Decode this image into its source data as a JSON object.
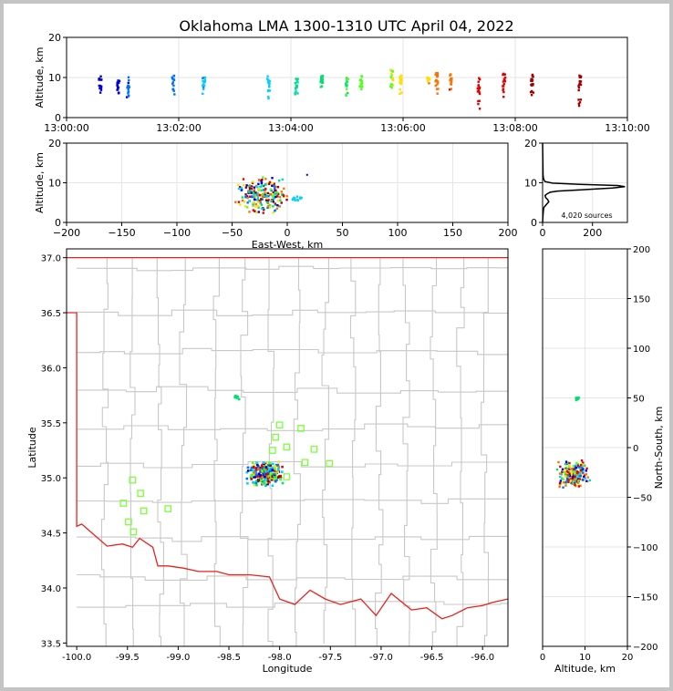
{
  "title": "Oklahoma LMA 1300-1310 UTC April 04, 2022",
  "source_count_label": "4,020 sources",
  "colors": {
    "county_lines": "#c8c8c8",
    "state_border": "#e8231e",
    "stations": "#7dff3c",
    "grid": "#e6e6e6",
    "histogram_line": "#000000",
    "colormap": [
      "#0000dd",
      "#0070ff",
      "#00d0ff",
      "#00e070",
      "#50ff20",
      "#ffe000",
      "#ff7000",
      "#e00000",
      "#a00000"
    ]
  },
  "chart_data": [
    {
      "id": "time_altitude",
      "type": "scatter",
      "xlabel": "",
      "ylabel": "Altitude, km",
      "xlim": [
        0,
        10
      ],
      "ylim": [
        0,
        20
      ],
      "xticks": [
        0,
        2,
        4,
        6,
        8,
        10
      ],
      "xtick_labels": [
        "13:00:00",
        "13:02:00",
        "13:04:00",
        "13:06:00",
        "13:08:00",
        "13:10:00"
      ],
      "yticks": [
        0,
        10,
        20
      ],
      "grid": true,
      "flashes": [
        {
          "t": 0.6,
          "z": [
            4.5,
            10.5
          ]
        },
        {
          "t": 0.92,
          "z": [
            5.5,
            10.0
          ]
        },
        {
          "t": 1.1,
          "z": [
            3.8,
            10.2
          ]
        },
        {
          "t": 1.9,
          "z": [
            5.5,
            10.5
          ]
        },
        {
          "t": 2.45,
          "z": [
            5.5,
            10.0
          ]
        },
        {
          "t": 3.6,
          "z": [
            3.5,
            10.5
          ]
        },
        {
          "t": 4.1,
          "z": [
            4.5,
            10.0
          ]
        },
        {
          "t": 4.55,
          "z": [
            7.5,
            10.5
          ]
        },
        {
          "t": 5.0,
          "z": [
            5.5,
            10.0
          ]
        },
        {
          "t": 5.25,
          "z": [
            5.0,
            10.5
          ]
        },
        {
          "t": 5.8,
          "z": [
            7.0,
            12.0
          ]
        },
        {
          "t": 5.95,
          "z": [
            5.0,
            10.5
          ]
        },
        {
          "t": 6.45,
          "z": [
            8.0,
            10.0
          ]
        },
        {
          "t": 6.6,
          "z": [
            4.5,
            11.5
          ]
        },
        {
          "t": 6.85,
          "z": [
            6.5,
            11.0
          ]
        },
        {
          "t": 7.35,
          "z": [
            0.8,
            10.5
          ]
        },
        {
          "t": 7.8,
          "z": [
            4.0,
            11.0
          ]
        },
        {
          "t": 8.3,
          "z": [
            5.5,
            11.0
          ]
        },
        {
          "t": 9.15,
          "z": [
            1.5,
            10.5
          ]
        }
      ]
    },
    {
      "id": "east_west_altitude",
      "type": "scatter",
      "xlabel": "East-West, km",
      "ylabel": "Altitude, km",
      "xlim": [
        -200,
        200
      ],
      "ylim": [
        0,
        20
      ],
      "xticks": [
        -200,
        -150,
        -100,
        -50,
        0,
        50,
        100,
        150,
        200
      ],
      "yticks": [
        0,
        10,
        20
      ],
      "grid": true,
      "clusters": [
        {
          "x_range": [
            -48,
            2
          ],
          "z_range": [
            2,
            12
          ],
          "count": 220
        },
        {
          "x_range": [
            2,
            15
          ],
          "z_range": [
            5,
            7
          ],
          "count": 12
        }
      ],
      "isolated_points": [
        {
          "x": 18,
          "z": 12
        }
      ]
    },
    {
      "id": "altitude_histogram",
      "type": "line",
      "xlabel": "",
      "ylabel": "",
      "xlim": [
        0,
        340
      ],
      "ylim": [
        0,
        20
      ],
      "xticks": [
        0,
        200
      ],
      "yticks": [
        0,
        10,
        20
      ],
      "grid": true,
      "annotation": "4,020 sources",
      "x": [
        0,
        2,
        4,
        6,
        8,
        15,
        25,
        20,
        12,
        10,
        18,
        30,
        60,
        120,
        200,
        280,
        330,
        300,
        150,
        40,
        10,
        5,
        3,
        2,
        0
      ],
      "y": [
        0,
        2,
        3.5,
        3.8,
        4,
        4.5,
        5.2,
        5.8,
        6.3,
        6.8,
        7.2,
        7.6,
        7.9,
        8.1,
        8.4,
        8.7,
        9.0,
        9.3,
        9.6,
        9.9,
        10.3,
        10.8,
        11.3,
        12.0,
        20
      ]
    },
    {
      "id": "plan_view_map",
      "type": "scatter",
      "xlabel": "Longitude",
      "ylabel": "Latitude",
      "xlim": [
        -100.1,
        -95.75
      ],
      "ylim": [
        33.47,
        37.08
      ],
      "xticks": [
        -100.0,
        -99.5,
        -99.0,
        -98.5,
        -98.0,
        -97.5,
        -97.0,
        -96.5,
        -96.0
      ],
      "xtick_labels": [
        "-100.0",
        "-99.5",
        "-99.0",
        "-98.5",
        "-98.0",
        "-97.5",
        "-97.0",
        "-96.5",
        "-96.0"
      ],
      "yticks": [
        33.5,
        34.0,
        34.5,
        35.0,
        35.5,
        36.0,
        36.5,
        37.0
      ],
      "ytick_labels": [
        "33.5",
        "34.0",
        "34.5",
        "35.0",
        "35.5",
        "36.0",
        "36.5",
        "37.0"
      ],
      "grid": false,
      "clusters": [
        {
          "lon_range": [
            -98.35,
            -97.95
          ],
          "lat_range": [
            34.92,
            35.16
          ],
          "count": 260
        },
        {
          "lon_range": [
            -98.46,
            -98.38
          ],
          "lat_range": [
            35.71,
            35.75
          ],
          "count": 12
        }
      ],
      "stations": [
        {
          "lon": -98.0,
          "lat": 35.48
        },
        {
          "lon": -97.79,
          "lat": 35.45
        },
        {
          "lon": -98.04,
          "lat": 35.37
        },
        {
          "lon": -97.93,
          "lat": 35.28
        },
        {
          "lon": -98.07,
          "lat": 35.25
        },
        {
          "lon": -97.66,
          "lat": 35.26
        },
        {
          "lon": -97.75,
          "lat": 35.14
        },
        {
          "lon": -97.51,
          "lat": 35.13
        },
        {
          "lon": -98.06,
          "lat": 35.02
        },
        {
          "lon": -97.93,
          "lat": 35.01
        },
        {
          "lon": -99.45,
          "lat": 34.98
        },
        {
          "lon": -99.37,
          "lat": 34.86
        },
        {
          "lon": -99.54,
          "lat": 34.77
        },
        {
          "lon": -99.34,
          "lat": 34.7
        },
        {
          "lon": -99.1,
          "lat": 34.72
        },
        {
          "lon": -99.49,
          "lat": 34.6
        },
        {
          "lon": -99.44,
          "lat": 34.51
        }
      ],
      "state_border": [
        [
          -100.1,
          37.0
        ],
        [
          -95.75,
          37.0
        ],
        [
          -100.1,
          36.5
        ],
        [
          -100.0,
          36.5
        ],
        [
          -100.0,
          34.56
        ],
        [
          -99.95,
          34.58
        ],
        [
          -99.85,
          34.5
        ],
        [
          -99.7,
          34.38
        ],
        [
          -99.55,
          34.4
        ],
        [
          -99.45,
          34.37
        ],
        [
          -99.38,
          34.45
        ],
        [
          -99.25,
          34.37
        ],
        [
          -99.2,
          34.2
        ],
        [
          -99.1,
          34.2
        ],
        [
          -98.95,
          34.18
        ],
        [
          -98.8,
          34.15
        ],
        [
          -98.62,
          34.15
        ],
        [
          -98.5,
          34.12
        ],
        [
          -98.3,
          34.12
        ],
        [
          -98.1,
          34.1
        ],
        [
          -98.0,
          33.9
        ],
        [
          -97.85,
          33.85
        ],
        [
          -97.7,
          33.98
        ],
        [
          -97.55,
          33.9
        ],
        [
          -97.4,
          33.85
        ],
        [
          -97.2,
          33.9
        ],
        [
          -97.05,
          33.75
        ],
        [
          -96.9,
          33.95
        ],
        [
          -96.7,
          33.8
        ],
        [
          -96.55,
          33.82
        ],
        [
          -96.4,
          33.72
        ],
        [
          -96.3,
          33.75
        ],
        [
          -96.15,
          33.82
        ],
        [
          -96.0,
          33.84
        ],
        [
          -95.9,
          33.87
        ],
        [
          -95.75,
          33.9
        ]
      ]
    },
    {
      "id": "altitude_north_south",
      "type": "scatter",
      "xlabel": "Altitude, km",
      "ylabel": "North-South, km",
      "xlim": [
        0,
        20
      ],
      "ylim": [
        -200,
        200
      ],
      "xticks": [
        0,
        10,
        20
      ],
      "yticks": [
        -200,
        -150,
        -100,
        -50,
        0,
        50,
        100,
        150,
        200
      ],
      "grid": true,
      "clusters": [
        {
          "z_range": [
            3,
            12
          ],
          "y_range": [
            -42,
            -12
          ],
          "count": 200
        },
        {
          "z_range": [
            7.5,
            9.5
          ],
          "y_range": [
            47,
            52
          ],
          "count": 10
        }
      ]
    }
  ]
}
